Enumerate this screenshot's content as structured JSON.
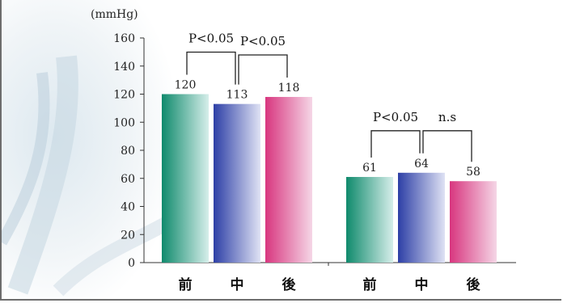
{
  "chart_data": {
    "type": "bar",
    "unit_label": "(mmHg)",
    "ylim": [
      0,
      160
    ],
    "yticks": [
      0,
      20,
      40,
      60,
      80,
      100,
      120,
      140,
      160
    ],
    "groups": [
      {
        "categories": [
          "前",
          "中",
          "後"
        ],
        "values": [
          120,
          113,
          118
        ],
        "value_labels": [
          "120",
          "113",
          "118"
        ],
        "comparisons": [
          {
            "from": 0,
            "to": 1,
            "label": "P<0.05"
          },
          {
            "from": 1,
            "to": 2,
            "label": "P<0.05"
          }
        ]
      },
      {
        "categories": [
          "前",
          "中",
          "後"
        ],
        "values": [
          61,
          64,
          58
        ],
        "value_labels": [
          "61",
          "64",
          "58"
        ],
        "comparisons": [
          {
            "from": 0,
            "to": 1,
            "label": "P<0.05"
          },
          {
            "from": 1,
            "to": 2,
            "label": "n.s"
          }
        ]
      }
    ],
    "bar_colors": {
      "前": [
        "#0f8a6c",
        "#d6eeea"
      ],
      "中": [
        "#2d3fa6",
        "#dfe2f4"
      ],
      "後": [
        "#d8367f",
        "#f5d6e6"
      ]
    },
    "grid": false,
    "legend": "none"
  }
}
